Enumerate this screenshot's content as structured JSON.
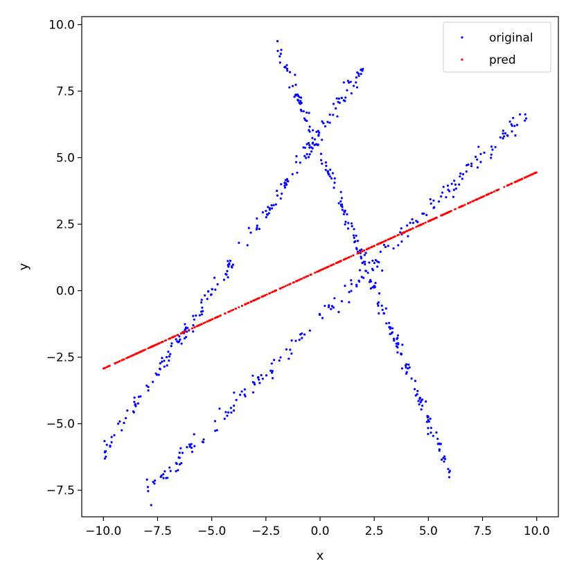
{
  "chart_data": {
    "type": "scatter",
    "title": "",
    "xlabel": "x",
    "ylabel": "y",
    "xlim": [
      -11.0,
      11.0
    ],
    "ylim": [
      -8.5,
      10.3
    ],
    "xticks": [
      -10.0,
      -7.5,
      -5.0,
      -2.5,
      0.0,
      2.5,
      5.0,
      7.5,
      10.0
    ],
    "xtick_labels": [
      "−10.0",
      "−7.5",
      "−5.0",
      "−2.5",
      "0.0",
      "2.5",
      "5.0",
      "7.5",
      "10.0"
    ],
    "yticks": [
      -7.5,
      -5.0,
      -2.5,
      0.0,
      2.5,
      5.0,
      7.5,
      10.0
    ],
    "ytick_labels": [
      "−7.5",
      "−5.0",
      "−2.5",
      "0.0",
      "2.5",
      "5.0",
      "7.5",
      "10.0"
    ],
    "grid": false,
    "legend": {
      "position": "top-right",
      "entries": [
        "original",
        "pred"
      ]
    },
    "series": [
      {
        "name": "original",
        "color": "#0000ff",
        "marker": "dot",
        "segments": [
          {
            "x_range": [
              -10.0,
              2.0
            ],
            "y_at_start": -6.1,
            "y_at_end": 8.4,
            "noise": 0.18
          },
          {
            "x_range": [
              -8.0,
              10.0
            ],
            "y_at_start": -7.6,
            "y_at_end": 7.1,
            "noise": 0.18
          },
          {
            "x_range": [
              -2.0,
              6.0
            ],
            "y_at_start": 9.2,
            "y_at_end": -6.9,
            "noise": 0.2
          }
        ]
      },
      {
        "name": "pred",
        "color": "#ff0000",
        "marker": "square",
        "segments": [
          {
            "x_range": [
              -10.0,
              10.0
            ],
            "y_at_start": -2.93,
            "y_at_end": 4.45,
            "noise": 0.0
          }
        ]
      }
    ]
  }
}
